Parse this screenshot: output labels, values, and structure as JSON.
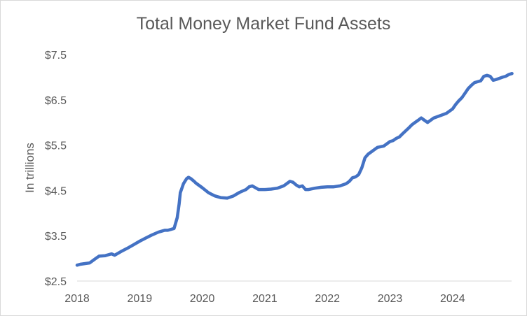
{
  "chart_data": {
    "type": "line",
    "title": "Total Money Market Fund Assets",
    "xlabel": "",
    "ylabel": "In trillions",
    "xlim": [
      2018,
      2024.95
    ],
    "ylim": [
      2.5,
      7.5
    ],
    "grid": false,
    "legend": "none",
    "x_ticks": [
      "2018",
      "2019",
      "2020",
      "2021",
      "2022",
      "2023",
      "2024"
    ],
    "y_ticks": [
      "$2.5",
      "$3.5",
      "$4.5",
      "$5.5",
      "$6.5",
      "$7.5"
    ],
    "series": [
      {
        "color": "#4472c4",
        "x": [
          2018.0,
          2018.05,
          2018.1,
          2018.2,
          2018.3,
          2018.35,
          2018.45,
          2018.5,
          2018.55,
          2018.6,
          2018.7,
          2018.8,
          2018.9,
          2019.0,
          2019.1,
          2019.2,
          2019.3,
          2019.35,
          2019.4,
          2019.45,
          2019.5,
          2019.55,
          2019.6,
          2019.63,
          2019.65,
          2019.7,
          2019.75,
          2019.78,
          2019.82,
          2019.87,
          2019.9,
          2020.0,
          2020.1,
          2020.2,
          2020.3,
          2020.4,
          2020.5,
          2020.55,
          2020.6,
          2020.7,
          2020.75,
          2020.8,
          2020.9,
          2021.0,
          2021.1,
          2021.2,
          2021.3,
          2021.35,
          2021.4,
          2021.45,
          2021.5,
          2021.55,
          2021.6,
          2021.65,
          2021.7,
          2021.8,
          2021.9,
          2022.0,
          2022.1,
          2022.2,
          2022.3,
          2022.35,
          2022.4,
          2022.45,
          2022.5,
          2022.55,
          2022.6,
          2022.65,
          2022.7,
          2022.8,
          2022.9,
          2023.0,
          2023.05,
          2023.1,
          2023.15,
          2023.2,
          2023.3,
          2023.35,
          2023.4,
          2023.45,
          2023.5,
          2023.55,
          2023.6,
          2023.7,
          2023.8,
          2023.9,
          2024.0,
          2024.05,
          2024.1,
          2024.15,
          2024.2,
          2024.25,
          2024.3,
          2024.35,
          2024.4,
          2024.45,
          2024.5,
          2024.55,
          2024.6,
          2024.65,
          2024.7,
          2024.8,
          2024.85,
          2024.9,
          2024.95
        ],
        "y": [
          2.85,
          2.87,
          2.88,
          2.9,
          3.0,
          3.05,
          3.06,
          3.08,
          3.1,
          3.07,
          3.15,
          3.22,
          3.3,
          3.38,
          3.45,
          3.52,
          3.58,
          3.6,
          3.62,
          3.62,
          3.64,
          3.66,
          3.9,
          4.2,
          4.45,
          4.65,
          4.76,
          4.79,
          4.76,
          4.7,
          4.66,
          4.56,
          4.45,
          4.38,
          4.34,
          4.33,
          4.38,
          4.42,
          4.46,
          4.52,
          4.58,
          4.6,
          4.52,
          4.52,
          4.53,
          4.55,
          4.6,
          4.65,
          4.7,
          4.68,
          4.62,
          4.58,
          4.6,
          4.52,
          4.52,
          4.55,
          4.57,
          4.58,
          4.58,
          4.6,
          4.65,
          4.7,
          4.78,
          4.8,
          4.85,
          5.0,
          5.22,
          5.3,
          5.35,
          5.45,
          5.48,
          5.58,
          5.6,
          5.65,
          5.68,
          5.75,
          5.88,
          5.95,
          6.0,
          6.05,
          6.1,
          6.05,
          6.0,
          6.1,
          6.15,
          6.2,
          6.3,
          6.4,
          6.48,
          6.55,
          6.65,
          6.75,
          6.82,
          6.88,
          6.9,
          6.92,
          7.02,
          7.04,
          7.02,
          6.93,
          6.95,
          7.0,
          7.02,
          7.06,
          7.08
        ]
      }
    ]
  }
}
